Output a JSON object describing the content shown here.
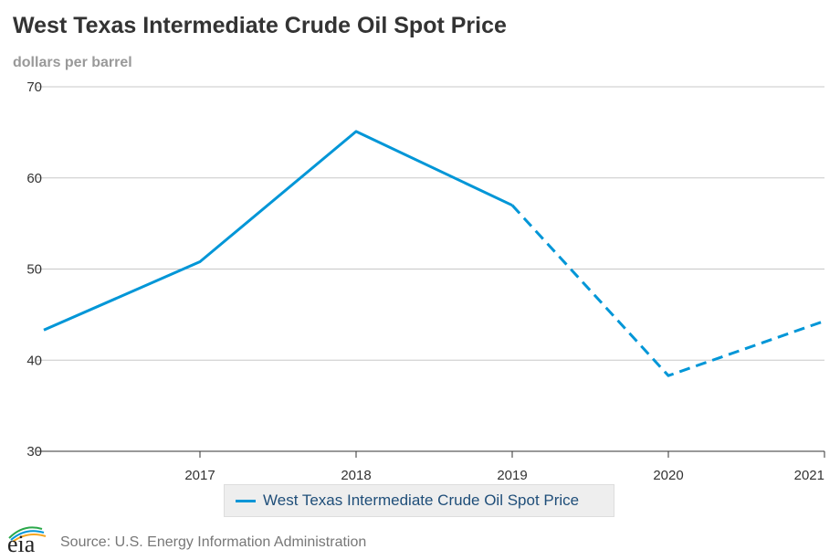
{
  "title": "West Texas Intermediate Crude Oil Spot Price",
  "subtitle": "dollars per barrel",
  "legend_label": "West Texas Intermediate Crude Oil Spot Price",
  "source": "Source: U.S. Energy Information Administration",
  "logo_text": "eia",
  "chart_data": {
    "type": "line",
    "title": "West Texas Intermediate Crude Oil Spot Price",
    "ylabel": "dollars per barrel",
    "xlabel": "",
    "ylim": [
      30,
      70
    ],
    "xlim": [
      2016,
      2021
    ],
    "y_ticks": [
      30,
      40,
      50,
      60,
      70
    ],
    "x_ticks": [
      2017,
      2018,
      2019,
      2020,
      2021
    ],
    "grid": "horizontal",
    "legend_position": "bottom",
    "series": [
      {
        "name": "West Texas Intermediate Crude Oil Spot Price",
        "color": "#0096d7",
        "historical": {
          "x": [
            2016,
            2017,
            2018,
            2019
          ],
          "y": [
            43.3,
            50.8,
            65.1,
            57.0
          ]
        },
        "forecast": {
          "x": [
            2019,
            2020,
            2021
          ],
          "y": [
            57.0,
            38.3,
            44.3
          ]
        }
      }
    ]
  }
}
